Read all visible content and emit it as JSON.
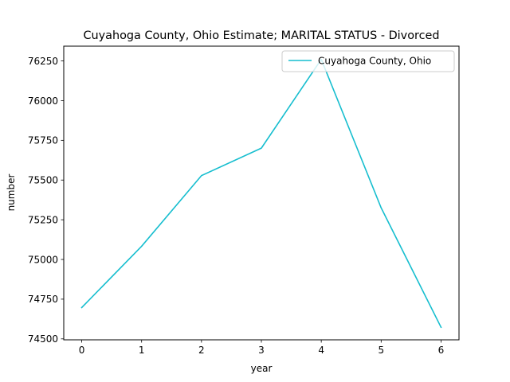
{
  "chart_data": {
    "type": "line",
    "title": "Cuyahoga County, Ohio Estimate; MARITAL STATUS - Divorced",
    "xlabel": "year",
    "ylabel": "number",
    "x": [
      0,
      1,
      2,
      3,
      4,
      5,
      6
    ],
    "series": [
      {
        "name": "Cuyahoga County, Ohio",
        "color": "#17becf",
        "values": [
          74697,
          75083,
          75528,
          75701,
          76260,
          75325,
          74573
        ]
      }
    ],
    "xticks": [
      "0",
      "1",
      "2",
      "3",
      "4",
      "5",
      "6"
    ],
    "yticks": [
      "74500",
      "74750",
      "75000",
      "75250",
      "75500",
      "75750",
      "76000",
      "76250"
    ],
    "xlim": [
      -0.3,
      6.3
    ],
    "ylim": [
      74494,
      76343
    ],
    "grid": false,
    "legend": "top-right"
  }
}
